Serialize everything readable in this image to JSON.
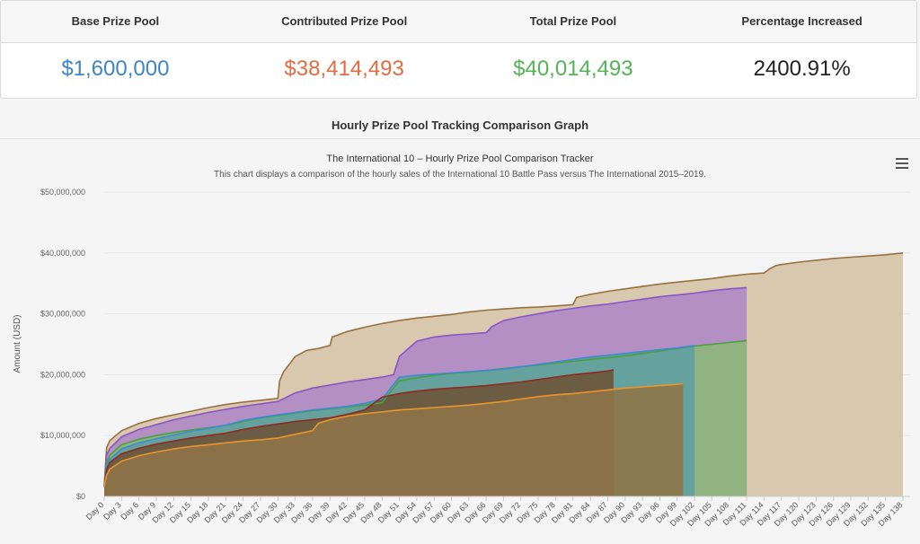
{
  "stats": {
    "headers": [
      "Base Prize Pool",
      "Contributed Prize Pool",
      "Total Prize Pool",
      "Percentage Increased"
    ],
    "values": [
      "$1,600,000",
      "$38,414,493",
      "$40,014,493",
      "2400.91%"
    ],
    "colors": [
      "#3d85c6",
      "#e06c42",
      "#52b455",
      "#222222"
    ]
  },
  "section_title": "Hourly Prize Pool Tracking Comparison Graph",
  "menu_icon": "hamburger-menu-icon",
  "chart_data": {
    "type": "area",
    "title": "The International 10 – Hourly Prize Pool Comparison Tracker",
    "subtitle": "This chart displays a comparison of the hourly sales of the International 10 Battle Pass versus The International 2015–2019.",
    "ylabel": "Amount (USD)",
    "xlabel": "",
    "ylim": [
      0,
      50000000
    ],
    "xlim": [
      0,
      138
    ],
    "y_ticks": [
      "$0",
      "$10,000,000",
      "$20,000,000",
      "$30,000,000",
      "$40,000,000",
      "$50,000,000"
    ],
    "x_ticks": [
      "Day 0",
      "Day 3",
      "Day 6",
      "Day 9",
      "Day 12",
      "Day 15",
      "Day 18",
      "Day 21",
      "Day 24",
      "Day 27",
      "Day 30",
      "Day 33",
      "Day 36",
      "Day 39",
      "Day 42",
      "Day 45",
      "Day 48",
      "Day 51",
      "Day 54",
      "Day 57",
      "Day 60",
      "Day 63",
      "Day 66",
      "Day 69",
      "Day 72",
      "Day 75",
      "Day 78",
      "Day 81",
      "Day 84",
      "Day 87",
      "Day 90",
      "Day 93",
      "Day 96",
      "Day 99",
      "Day 102",
      "Day 105",
      "Day 108",
      "Day 111",
      "Day 114",
      "Day 117",
      "Day 120",
      "Day 123",
      "Day 126",
      "Day 129",
      "Day 132",
      "Day 135",
      "Day 138"
    ],
    "grid": true,
    "legend": "none",
    "series": [
      {
        "line": "#9a7040",
        "fill": "#d8c8ae",
        "x": [
          0,
          0.4,
          1,
          3,
          6,
          9,
          12,
          15,
          18,
          21,
          24,
          27,
          30,
          30.3,
          31,
          33,
          35,
          37,
          39,
          39.4,
          42,
          45,
          48,
          51,
          54,
          57,
          60,
          63,
          66,
          69,
          72,
          75,
          78,
          81,
          81.6,
          84,
          87,
          90,
          93,
          96,
          99,
          102,
          105,
          108,
          111,
          112,
          114,
          115,
          116,
          117,
          120,
          123,
          126,
          129,
          132,
          135,
          138
        ],
        "y": [
          1600000,
          8000000,
          9200000,
          10800000,
          12000000,
          12800000,
          13400000,
          14000000,
          14600000,
          15100000,
          15500000,
          15800000,
          16100000,
          19000000,
          20500000,
          23000000,
          24000000,
          24300000,
          24800000,
          26200000,
          27100000,
          27800000,
          28400000,
          28900000,
          29300000,
          29600000,
          29900000,
          30300000,
          30600000,
          30800000,
          31000000,
          31100000,
          31300000,
          31500000,
          32700000,
          33200000,
          33700000,
          34100000,
          34500000,
          34900000,
          35200000,
          35500000,
          35800000,
          36200000,
          36500000,
          36600000,
          36700000,
          37400000,
          37900000,
          38100000,
          38500000,
          38800000,
          39100000,
          39300000,
          39500000,
          39700000,
          40000000
        ]
      },
      {
        "line": "#8a55c4",
        "fill": "#ae86c6",
        "x": [
          0,
          0.4,
          1,
          3,
          6,
          9,
          12,
          15,
          18,
          21,
          24,
          27,
          30,
          33,
          36,
          39,
          42,
          45,
          48,
          50,
          51,
          54,
          57,
          60,
          63,
          66,
          67,
          69,
          72,
          75,
          78,
          81,
          84,
          87,
          90,
          93,
          96,
          99,
          102,
          105,
          108,
          111
        ],
        "y": [
          1600000,
          6800000,
          7900000,
          9800000,
          11000000,
          11800000,
          12600000,
          13200000,
          13800000,
          14300000,
          14800000,
          15200000,
          15600000,
          17000000,
          17800000,
          18300000,
          18800000,
          19200000,
          19600000,
          20000000,
          23000000,
          25500000,
          26200000,
          26500000,
          26700000,
          26900000,
          27900000,
          28900000,
          29500000,
          30000000,
          30500000,
          30900000,
          31300000,
          31600000,
          32000000,
          32400000,
          32800000,
          33100000,
          33400000,
          33800000,
          34100000,
          34300000
        ]
      },
      {
        "line": "#4aa13a",
        "fill": "#8cb878",
        "x": [
          0,
          0.4,
          1,
          3,
          6,
          9,
          12,
          15,
          18,
          21,
          24,
          27,
          30,
          33,
          36,
          39,
          42,
          45,
          48,
          51,
          54,
          57,
          60,
          63,
          66,
          69,
          72,
          75,
          78,
          81,
          84,
          87,
          90,
          93,
          96,
          99,
          102,
          105,
          108,
          111
        ],
        "y": [
          1600000,
          5500000,
          6800000,
          8500000,
          9400000,
          10000000,
          10500000,
          10900000,
          11300000,
          11700000,
          12300000,
          12900000,
          13300000,
          13700000,
          14100000,
          14400000,
          14700000,
          15000000,
          15400000,
          19000000,
          19500000,
          19900000,
          20200000,
          20400000,
          20700000,
          21000000,
          21300000,
          21600000,
          21900000,
          22200000,
          22500000,
          22800000,
          23100000,
          23500000,
          23900000,
          24300000,
          24700000,
          25000000,
          25300000,
          25600000
        ]
      },
      {
        "line": "#3d8bd2",
        "fill": "#5f9ea0",
        "x": [
          0,
          0.4,
          1,
          3,
          6,
          9,
          12,
          15,
          18,
          21,
          24,
          27,
          30,
          33,
          36,
          39,
          42,
          45,
          48,
          51,
          54,
          57,
          60,
          63,
          66,
          69,
          72,
          75,
          78,
          81,
          84,
          87,
          90,
          93,
          96,
          99,
          102
        ],
        "y": [
          1600000,
          5000000,
          6100000,
          7800000,
          8800000,
          9500000,
          10100000,
          10700000,
          11200000,
          11700000,
          12500000,
          13000000,
          13400000,
          13800000,
          14200000,
          14500000,
          14800000,
          15300000,
          16000000,
          19600000,
          19900000,
          20100000,
          20300000,
          20500000,
          20700000,
          20900000,
          21300000,
          21700000,
          22100000,
          22500000,
          22900000,
          23200000,
          23500000,
          23800000,
          24100000,
          24400000,
          24800000
        ]
      },
      {
        "line": "#8e2a22",
        "fill": "#6e5238",
        "x": [
          0,
          0.4,
          1,
          3,
          6,
          9,
          12,
          15,
          18,
          21,
          24,
          27,
          30,
          33,
          36,
          39,
          42,
          45,
          48,
          51,
          54,
          57,
          60,
          63,
          66,
          69,
          72,
          75,
          78,
          81,
          84,
          87,
          88
        ],
        "y": [
          1600000,
          4500000,
          5600000,
          7000000,
          7900000,
          8600000,
          9100000,
          9600000,
          10000000,
          10400000,
          11000000,
          11500000,
          11900000,
          12300000,
          12600000,
          12900000,
          13500000,
          14200000,
          16300000,
          16900000,
          17300000,
          17600000,
          17800000,
          18000000,
          18200000,
          18500000,
          18800000,
          19200000,
          19600000,
          20000000,
          20300000,
          20600000,
          20800000
        ]
      },
      {
        "line": "#e8962a",
        "fill": "#8e7448",
        "x": [
          0,
          0.4,
          1,
          3,
          6,
          9,
          12,
          15,
          18,
          21,
          24,
          27,
          30,
          33,
          36,
          37,
          39,
          42,
          45,
          48,
          51,
          54,
          57,
          60,
          63,
          66,
          69,
          72,
          75,
          78,
          81,
          84,
          87,
          90,
          93,
          96,
          99,
          100
        ],
        "y": [
          1600000,
          3500000,
          4500000,
          5800000,
          6700000,
          7300000,
          7800000,
          8200000,
          8500000,
          8800000,
          9100000,
          9300000,
          9600000,
          10200000,
          10800000,
          12000000,
          12600000,
          13200000,
          13600000,
          13900000,
          14200000,
          14400000,
          14600000,
          14800000,
          15000000,
          15300000,
          15600000,
          16000000,
          16400000,
          16700000,
          16900000,
          17200000,
          17500000,
          17800000,
          18000000,
          18200000,
          18400000,
          18500000
        ]
      }
    ]
  }
}
